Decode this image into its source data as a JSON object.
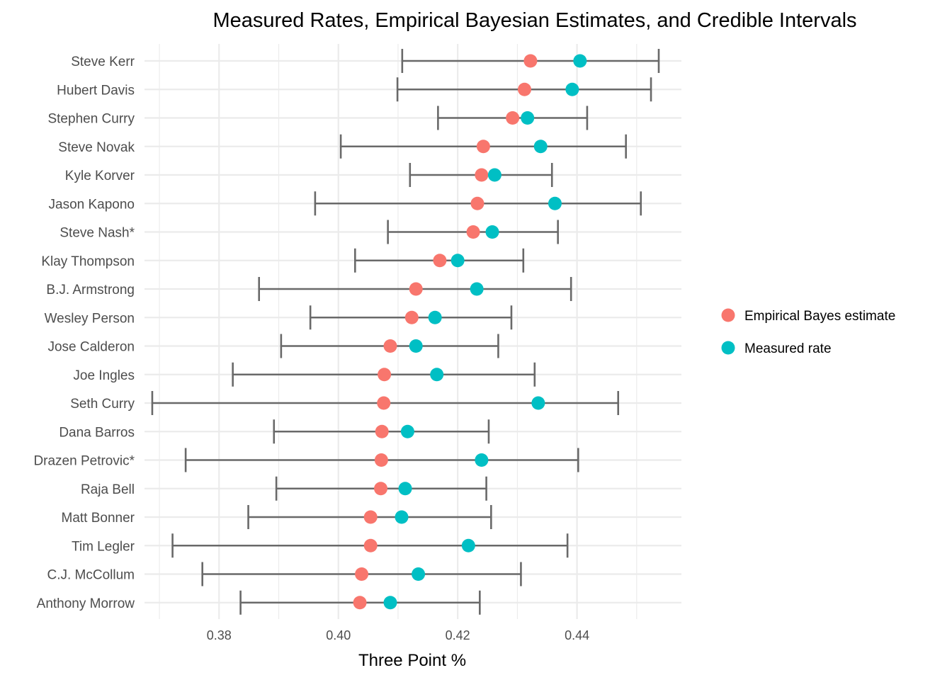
{
  "chart_data": {
    "type": "scatter",
    "title": "Measured Rates, Empirical Bayesian Estimates, and Credible Intervals",
    "xlabel": "Three Point %",
    "ylabel": "",
    "xlim": [
      0.3675,
      0.4575
    ],
    "x_ticks": [
      0.38,
      0.4,
      0.42,
      0.44
    ],
    "x_tick_labels": [
      "0.38",
      "0.40",
      "0.42",
      "0.44"
    ],
    "grid": true,
    "legend_position": "right",
    "colors": {
      "estimate": "#F8766D",
      "measured": "#00BFC4",
      "interval": "#696969",
      "grid": "#EBEBEB"
    },
    "legend": [
      {
        "key": "estimate",
        "label": "Empirical Bayes estimate"
      },
      {
        "key": "measured",
        "label": "Measured rate"
      }
    ],
    "players": [
      {
        "name": "Steve Kerr",
        "estimate": 0.4322,
        "measured": 0.4405,
        "low": 0.4107,
        "high": 0.4537
      },
      {
        "name": "Hubert Davis",
        "estimate": 0.4312,
        "measured": 0.4392,
        "low": 0.4099,
        "high": 0.4524
      },
      {
        "name": "Stephen Curry",
        "estimate": 0.4292,
        "measured": 0.4317,
        "low": 0.4167,
        "high": 0.4417
      },
      {
        "name": "Steve Novak",
        "estimate": 0.4243,
        "measured": 0.4339,
        "low": 0.4004,
        "high": 0.4482
      },
      {
        "name": "Kyle Korver",
        "estimate": 0.424,
        "measured": 0.4262,
        "low": 0.412,
        "high": 0.4358
      },
      {
        "name": "Jason Kapono",
        "estimate": 0.4233,
        "measured": 0.4363,
        "low": 0.3961,
        "high": 0.4507
      },
      {
        "name": "Steve Nash*",
        "estimate": 0.4226,
        "measured": 0.4258,
        "low": 0.4083,
        "high": 0.4368
      },
      {
        "name": "Klay Thompson",
        "estimate": 0.417,
        "measured": 0.42,
        "low": 0.4028,
        "high": 0.431
      },
      {
        "name": "B.J. Armstrong",
        "estimate": 0.413,
        "measured": 0.4232,
        "low": 0.3867,
        "high": 0.439
      },
      {
        "name": "Wesley Person",
        "estimate": 0.4123,
        "measured": 0.4162,
        "low": 0.3953,
        "high": 0.429
      },
      {
        "name": "Jose Calderon",
        "estimate": 0.4087,
        "measured": 0.413,
        "low": 0.3904,
        "high": 0.4268
      },
      {
        "name": "Joe Ingles",
        "estimate": 0.4077,
        "measured": 0.4165,
        "low": 0.3823,
        "high": 0.4329
      },
      {
        "name": "Seth Curry",
        "estimate": 0.4076,
        "measured": 0.4335,
        "low": 0.3688,
        "high": 0.4469
      },
      {
        "name": "Dana Barros",
        "estimate": 0.4073,
        "measured": 0.4116,
        "low": 0.3892,
        "high": 0.4252
      },
      {
        "name": "Drazen Petrovic*",
        "estimate": 0.4072,
        "measured": 0.424,
        "low": 0.3744,
        "high": 0.4402
      },
      {
        "name": "Raja Bell",
        "estimate": 0.4071,
        "measured": 0.4112,
        "low": 0.3896,
        "high": 0.4248
      },
      {
        "name": "Matt Bonner",
        "estimate": 0.4054,
        "measured": 0.4106,
        "low": 0.3849,
        "high": 0.4256
      },
      {
        "name": "Tim Legler",
        "estimate": 0.4054,
        "measured": 0.4218,
        "low": 0.3722,
        "high": 0.4384
      },
      {
        "name": "C.J. McCollum",
        "estimate": 0.4039,
        "measured": 0.4134,
        "low": 0.3772,
        "high": 0.4306
      },
      {
        "name": "Anthony Morrow",
        "estimate": 0.4036,
        "measured": 0.4087,
        "low": 0.3836,
        "high": 0.4237
      }
    ]
  }
}
